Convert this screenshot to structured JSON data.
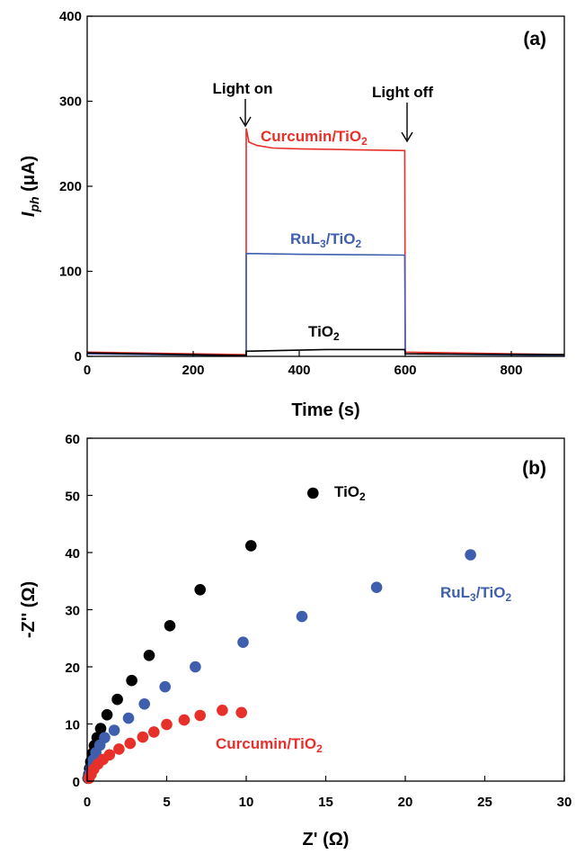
{
  "colors": {
    "curcumin": "#e8302a",
    "rul3": "#3f5fae",
    "tio2": "#000000"
  },
  "chart_data": [
    {
      "type": "line",
      "panel": "(a)",
      "xlabel": "Time (s)",
      "ylabel_main": "I",
      "ylabel_sub": "ph",
      "ylabel_unit": " (μA)",
      "xlim": [
        0,
        900
      ],
      "ylim": [
        0,
        400
      ],
      "xticks": [
        0,
        200,
        400,
        600,
        800
      ],
      "yticks": [
        0,
        100,
        200,
        300,
        400
      ],
      "annotations": {
        "light_on": "Light on",
        "light_off": "Light off"
      },
      "series": [
        {
          "name": "Curcumin/TiO2",
          "label_main": "Curcumin/TiO",
          "label_sub": "2",
          "color_key": "curcumin",
          "points": [
            [
              0,
              5
            ],
            [
              300,
              2
            ],
            [
              300,
              268
            ],
            [
              305,
              252
            ],
            [
              320,
              248
            ],
            [
              350,
              245
            ],
            [
              400,
              244
            ],
            [
              500,
              243
            ],
            [
              599,
              242
            ],
            [
              600,
              5
            ],
            [
              900,
              2
            ]
          ]
        },
        {
          "name": "RuL3/TiO2",
          "label_main": "RuL",
          "label_sub": "3",
          "label_tail": "/TiO",
          "label_sub2": "2",
          "color_key": "rul3",
          "points": [
            [
              0,
              3
            ],
            [
              300,
              1
            ],
            [
              300,
              121
            ],
            [
              400,
              120
            ],
            [
              599,
              119
            ],
            [
              600,
              3
            ],
            [
              900,
              1
            ]
          ]
        },
        {
          "name": "TiO2",
          "label_main": "TiO",
          "label_sub": "2",
          "color_key": "tio2",
          "points": [
            [
              0,
              4
            ],
            [
              300,
              1
            ],
            [
              300,
              6
            ],
            [
              450,
              8
            ],
            [
              599,
              8
            ],
            [
              600,
              3
            ],
            [
              900,
              2
            ]
          ]
        }
      ]
    },
    {
      "type": "scatter",
      "panel": "(b)",
      "xlabel": "Z' (Ω)",
      "ylabel": "-Z'' (Ω)",
      "xlim": [
        0,
        30
      ],
      "ylim": [
        0,
        60
      ],
      "xticks": [
        0,
        5,
        10,
        15,
        20,
        25,
        30
      ],
      "yticks": [
        0,
        10,
        20,
        30,
        40,
        50,
        60
      ],
      "series": [
        {
          "name": "TiO2",
          "label_main": "TiO",
          "label_sub": "2",
          "color_key": "tio2",
          "points": [
            [
              0.05,
              0.5
            ],
            [
              0.1,
              1.2
            ],
            [
              0.15,
              2.2
            ],
            [
              0.22,
              3.4
            ],
            [
              0.32,
              4.8
            ],
            [
              0.45,
              6.2
            ],
            [
              0.62,
              7.6
            ],
            [
              0.85,
              9.2
            ],
            [
              1.25,
              11.6
            ],
            [
              1.9,
              14.3
            ],
            [
              2.8,
              17.6
            ],
            [
              3.9,
              22.0
            ],
            [
              5.2,
              27.2
            ],
            [
              7.1,
              33.5
            ],
            [
              10.3,
              41.2
            ],
            [
              14.2,
              50.4
            ]
          ]
        },
        {
          "name": "RuL3/TiO2",
          "label_main": "RuL",
          "label_sub": "3",
          "label_tail": "/TiO",
          "label_sub2": "2",
          "color_key": "rul3",
          "points": [
            [
              0.08,
              0.5
            ],
            [
              0.15,
              1.3
            ],
            [
              0.25,
              2.4
            ],
            [
              0.38,
              3.7
            ],
            [
              0.55,
              5.0
            ],
            [
              0.8,
              6.3
            ],
            [
              1.1,
              7.6
            ],
            [
              1.7,
              8.9
            ],
            [
              2.6,
              11.0
            ],
            [
              3.6,
              13.5
            ],
            [
              4.9,
              16.5
            ],
            [
              6.8,
              20.0
            ],
            [
              9.8,
              24.3
            ],
            [
              13.5,
              28.8
            ],
            [
              18.2,
              33.9
            ],
            [
              24.1,
              39.6
            ]
          ]
        },
        {
          "name": "Curcumin/TiO2",
          "label_main": "Curcumin/TiO",
          "label_sub": "2",
          "color_key": "curcumin",
          "points": [
            [
              0.12,
              0.5
            ],
            [
              0.25,
              1.2
            ],
            [
              0.42,
              2.1
            ],
            [
              0.68,
              3.0
            ],
            [
              1.0,
              3.8
            ],
            [
              1.4,
              4.6
            ],
            [
              2.0,
              5.6
            ],
            [
              2.7,
              6.6
            ],
            [
              3.5,
              7.7
            ],
            [
              4.2,
              8.6
            ],
            [
              5.0,
              9.9
            ],
            [
              6.1,
              10.7
            ],
            [
              7.1,
              11.5
            ],
            [
              8.5,
              12.4
            ],
            [
              9.7,
              12.0
            ]
          ]
        }
      ]
    }
  ]
}
